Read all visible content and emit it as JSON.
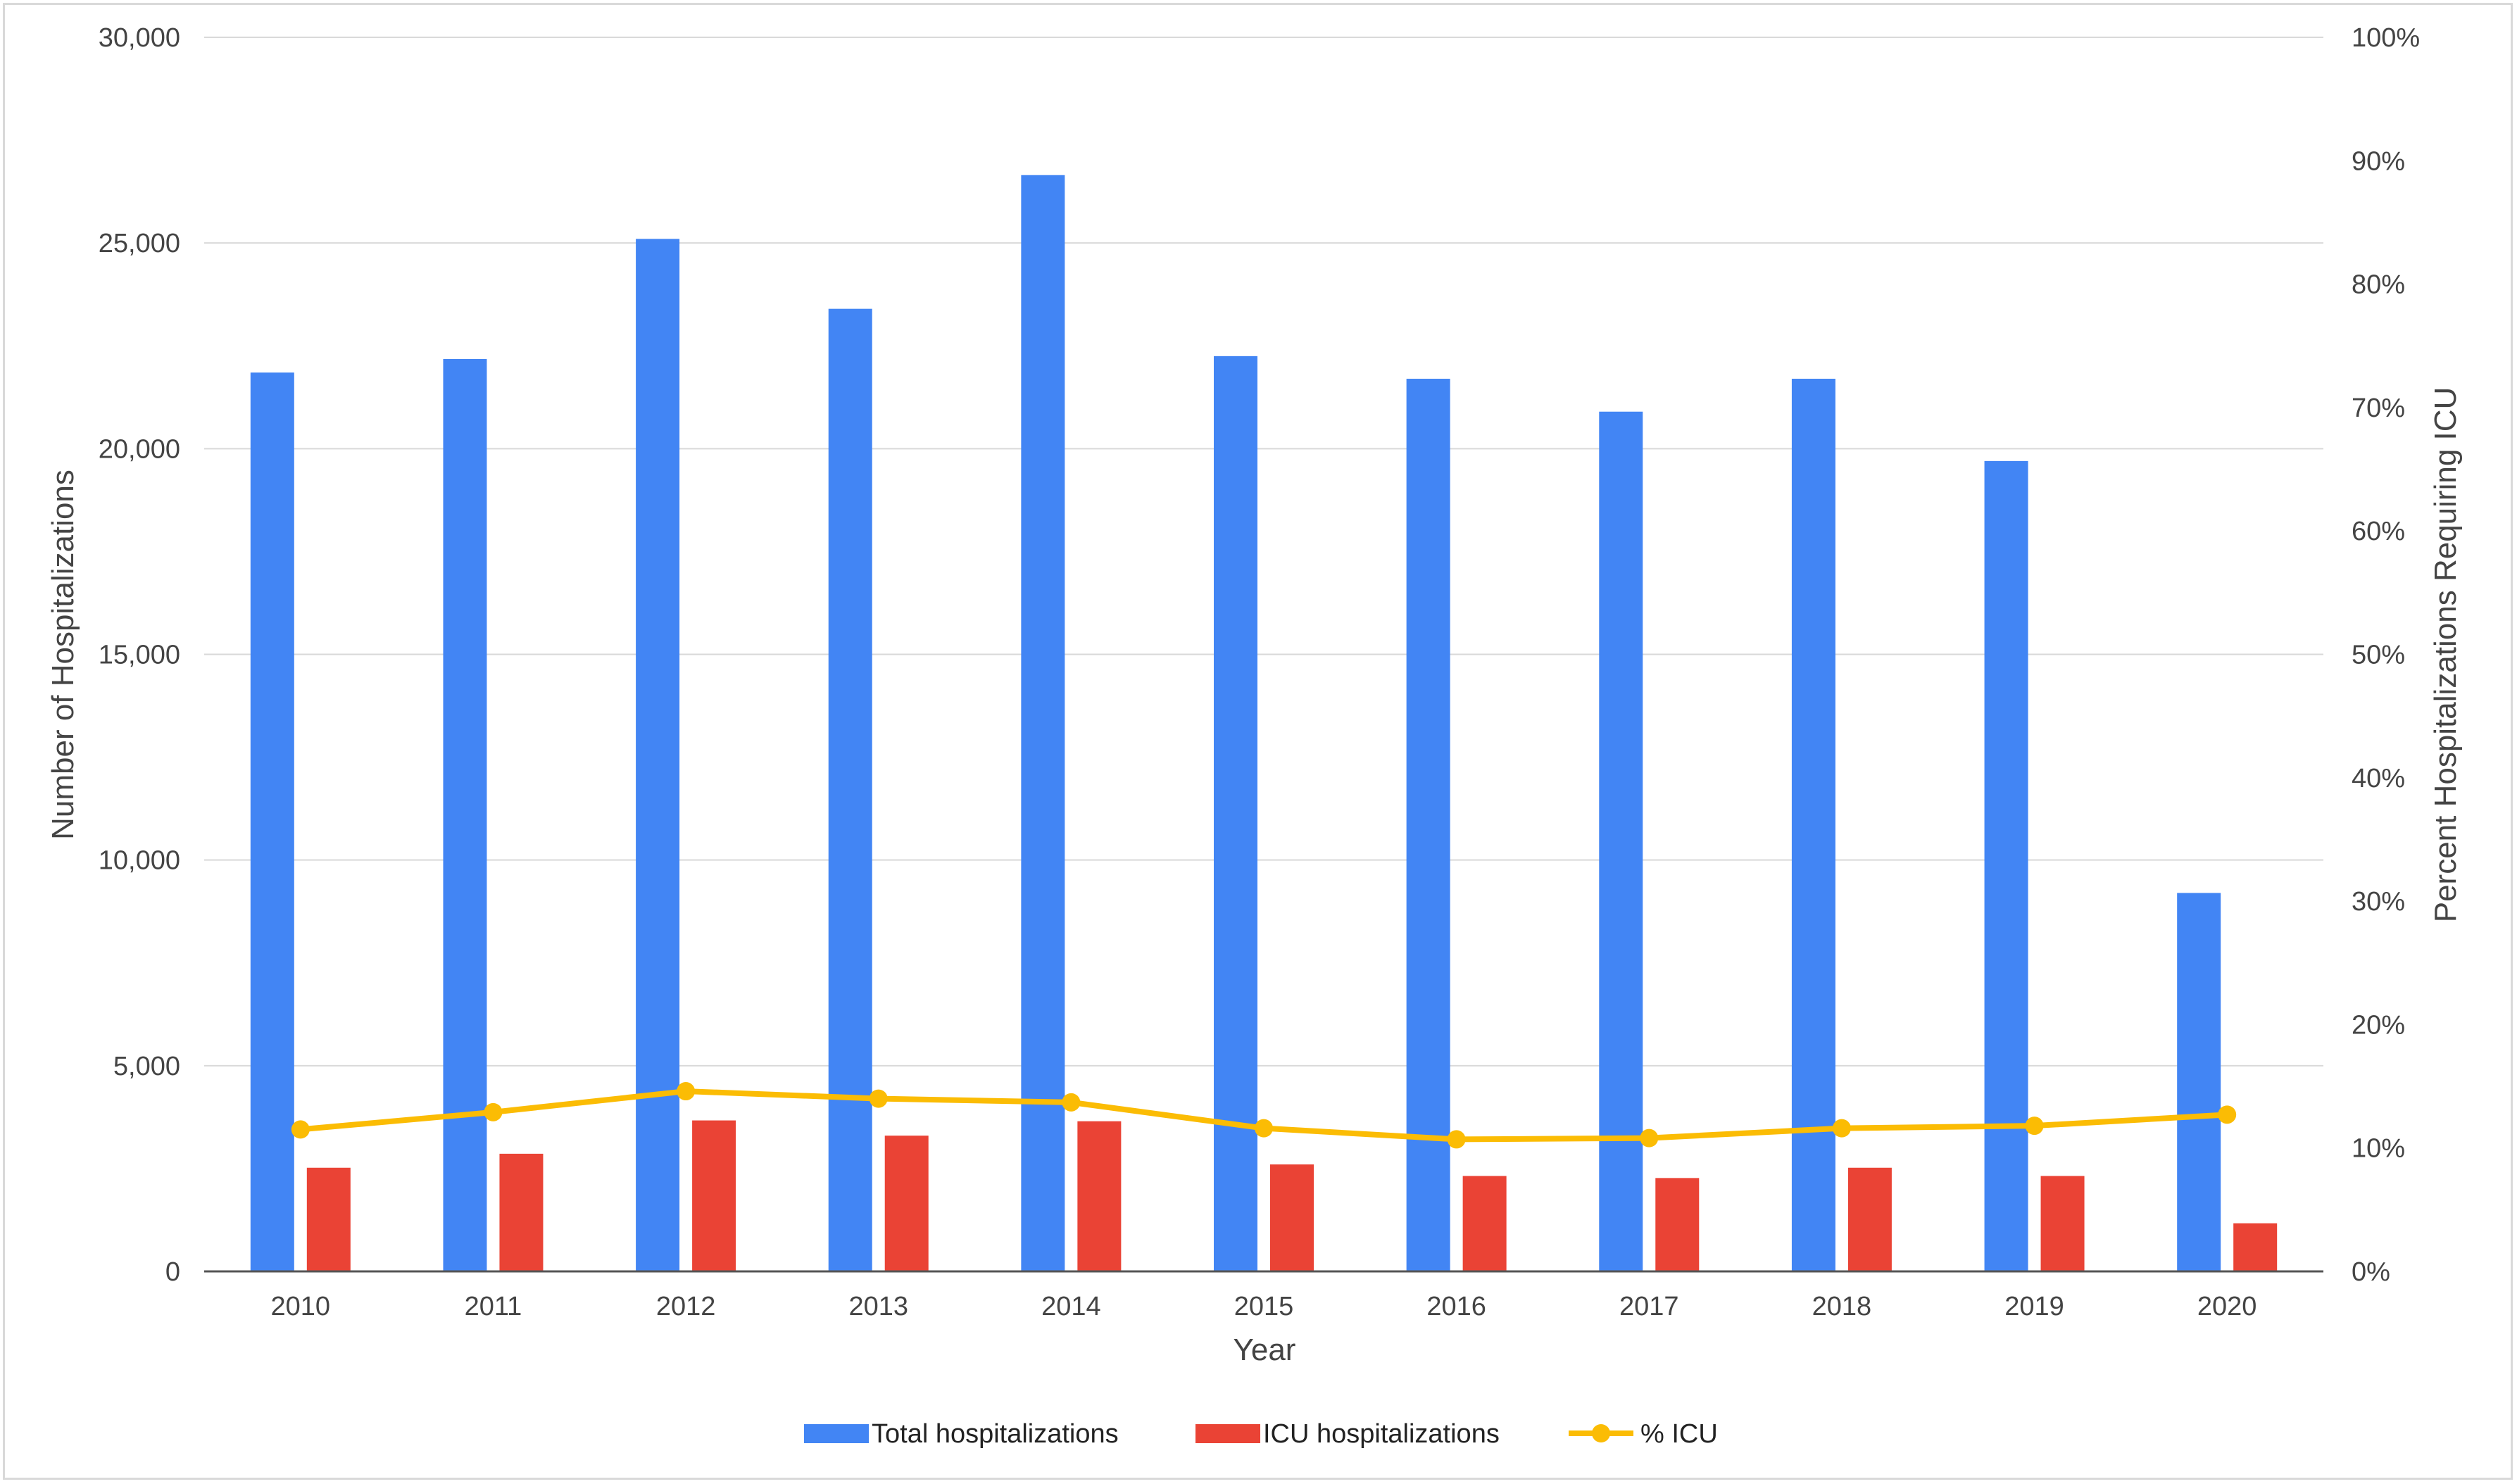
{
  "chart_data": {
    "type": "bar",
    "categories": [
      "2010",
      "2011",
      "2012",
      "2013",
      "2014",
      "2015",
      "2016",
      "2017",
      "2018",
      "2019",
      "2020"
    ],
    "series": [
      {
        "name": "Total hospitalizations",
        "kind": "bar",
        "axis": "left",
        "color": "#4285f4",
        "values": [
          21850,
          22180,
          25100,
          23400,
          26650,
          22250,
          21700,
          20900,
          21700,
          19700,
          9200
        ]
      },
      {
        "name": "ICU hospitalizations",
        "kind": "bar",
        "axis": "left",
        "color": "#ea4335",
        "values": [
          2520,
          2860,
          3670,
          3300,
          3650,
          2600,
          2320,
          2270,
          2520,
          2320,
          1170
        ]
      },
      {
        "name": "% ICU",
        "kind": "line",
        "axis": "right",
        "color": "#fbbc04",
        "values": [
          11.5,
          12.9,
          14.6,
          14.0,
          13.7,
          11.6,
          10.7,
          10.8,
          11.6,
          11.8,
          12.7
        ]
      }
    ],
    "xlabel": "Year",
    "ylabel": "Number of Hospitalizations",
    "y2label": "Percent Hospitalizations Requiring ICU",
    "ylim": [
      0,
      30000
    ],
    "y2lim": [
      0,
      100
    ],
    "yticks": [
      "0",
      "5,000",
      "10,000",
      "15,000",
      "20,000",
      "25,000",
      "30,000"
    ],
    "y2ticks": [
      "0%",
      "10%",
      "20%",
      "30%",
      "40%",
      "50%",
      "60%",
      "70%",
      "80%",
      "90%",
      "100%"
    ],
    "grid": true,
    "legend_position": "bottom-center"
  }
}
